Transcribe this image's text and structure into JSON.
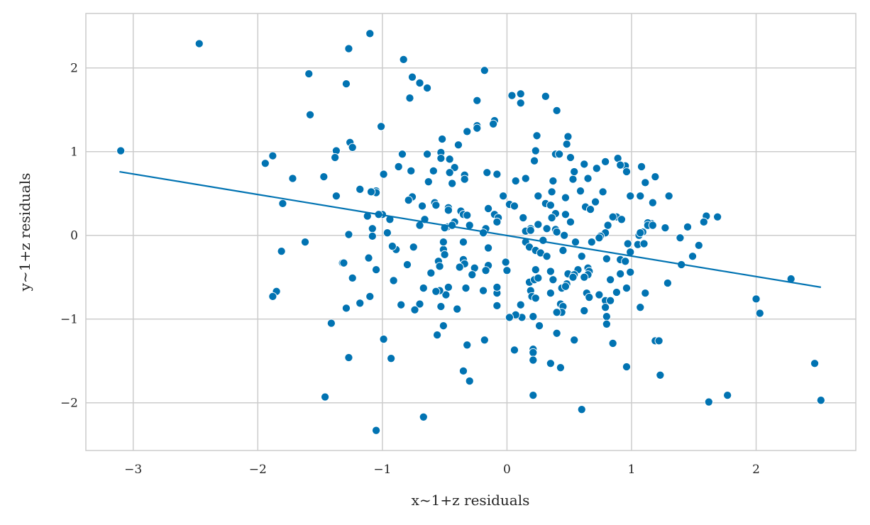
{
  "chart_data": {
    "type": "scatter",
    "title": "",
    "xlabel": "x~1+z residuals",
    "ylabel": "y~1+z residuals",
    "xlim": [
      -3.38,
      2.8
    ],
    "ylim": [
      -2.57,
      2.65
    ],
    "grid": true,
    "xticks": [
      -3,
      -2,
      -1,
      0,
      1,
      2
    ],
    "yticks": [
      -2,
      -1,
      0,
      1,
      2
    ],
    "xtick_labels": [
      "−3",
      "−2",
      "−1",
      "0",
      "1",
      "2"
    ],
    "ytick_labels": [
      "−2",
      "−1",
      "0",
      "1",
      "2"
    ],
    "point_color": "#0173b2",
    "line_color": "#0173b2",
    "regression_line": {
      "x": [
        -3.11,
        2.52
      ],
      "y": [
        0.76,
        -0.62
      ]
    },
    "points": [
      [
        -3.1,
        1.01
      ],
      [
        -2.47,
        2.29
      ],
      [
        -1.59,
        1.93
      ],
      [
        -1.58,
        1.44
      ],
      [
        -1.27,
        2.23
      ],
      [
        -1.1,
        2.41
      ],
      [
        -1.29,
        1.81
      ],
      [
        -0.83,
        2.1
      ],
      [
        -0.76,
        1.89
      ],
      [
        -0.7,
        1.82
      ],
      [
        -0.64,
        1.76
      ],
      [
        -0.78,
        1.64
      ],
      [
        -0.18,
        1.97
      ],
      [
        -1.01,
        1.3
      ],
      [
        -0.24,
        1.61
      ],
      [
        0.04,
        1.67
      ],
      [
        0.11,
        1.69
      ],
      [
        0.11,
        1.58
      ],
      [
        0.31,
        1.66
      ],
      [
        0.4,
        1.49
      ],
      [
        -0.1,
        1.37
      ],
      [
        -0.11,
        1.33
      ],
      [
        -0.24,
        1.31
      ],
      [
        -0.24,
        1.28
      ],
      [
        -0.32,
        1.24
      ],
      [
        -0.52,
        1.15
      ],
      [
        -0.39,
        1.08
      ],
      [
        0.24,
        1.19
      ],
      [
        0.49,
        1.18
      ],
      [
        0.48,
        1.09
      ],
      [
        0.51,
        0.93
      ],
      [
        0.23,
        1.01
      ],
      [
        0.22,
        0.89
      ],
      [
        0.39,
        0.97
      ],
      [
        0.42,
        0.97
      ],
      [
        -0.64,
        0.97
      ],
      [
        -0.53,
        0.99
      ],
      [
        -0.53,
        0.92
      ],
      [
        -0.46,
        0.91
      ],
      [
        -0.42,
        0.81
      ],
      [
        -0.46,
        0.75
      ],
      [
        -0.59,
        0.77
      ],
      [
        -0.34,
        0.72
      ],
      [
        -0.34,
        0.67
      ],
      [
        -0.63,
        0.64
      ],
      [
        -0.44,
        0.62
      ],
      [
        -0.84,
        0.97
      ],
      [
        -0.87,
        0.82
      ],
      [
        -0.99,
        0.73
      ],
      [
        -0.77,
        0.77
      ],
      [
        -0.76,
        0.46
      ],
      [
        -0.79,
        0.42
      ],
      [
        -0.68,
        0.35
      ],
      [
        -0.66,
        0.19
      ],
      [
        -0.7,
        0.12
      ],
      [
        -0.58,
        0.39
      ],
      [
        -0.57,
        0.36
      ],
      [
        -0.48,
        0.1
      ],
      [
        -0.47,
        0.33
      ],
      [
        -0.47,
        0.3
      ],
      [
        -0.37,
        0.29
      ],
      [
        -0.35,
        0.25
      ],
      [
        -0.32,
        0.24
      ],
      [
        -0.42,
        0.16
      ],
      [
        -0.44,
        0.12
      ],
      [
        -0.3,
        0.12
      ],
      [
        -0.16,
        0.75
      ],
      [
        -0.08,
        0.73
      ],
      [
        -0.1,
        0.25
      ],
      [
        -0.07,
        0.21
      ],
      [
        -0.08,
        0.16
      ],
      [
        -0.17,
        0.08
      ],
      [
        -0.19,
        0.03
      ],
      [
        -0.03,
        0.47
      ],
      [
        -0.15,
        0.32
      ],
      [
        0.07,
        0.65
      ],
      [
        0.15,
        0.68
      ],
      [
        0.19,
        0.08
      ],
      [
        0.15,
        0.05
      ],
      [
        0.15,
        -0.08
      ],
      [
        0.02,
        0.37
      ],
      [
        0.06,
        0.35
      ],
      [
        0.13,
        0.21
      ],
      [
        0.25,
        0.47
      ],
      [
        0.36,
        0.52
      ],
      [
        0.37,
        0.65
      ],
      [
        0.31,
        0.38
      ],
      [
        0.35,
        0.36
      ],
      [
        0.39,
        0.26
      ],
      [
        0.36,
        0.21
      ],
      [
        0.32,
        0.08
      ],
      [
        0.39,
        0.07
      ],
      [
        0.25,
        0.13
      ],
      [
        0.19,
        0.06
      ],
      [
        0.29,
        -0.06
      ],
      [
        0.18,
        -0.14
      ],
      [
        0.23,
        -0.18
      ],
      [
        0.27,
        -0.21
      ],
      [
        0.32,
        -0.25
      ],
      [
        0.45,
        -0.18
      ],
      [
        0.47,
        0.45
      ],
      [
        0.47,
        0.25
      ],
      [
        0.51,
        0.16
      ],
      [
        0.53,
        0.67
      ],
      [
        0.54,
        0.76
      ],
      [
        0.59,
        0.53
      ],
      [
        0.62,
        0.85
      ],
      [
        0.65,
        0.68
      ],
      [
        0.63,
        0.34
      ],
      [
        0.72,
        0.8
      ],
      [
        0.71,
        0.4
      ],
      [
        0.79,
        0.88
      ],
      [
        0.77,
        0.52
      ],
      [
        0.89,
        0.92
      ],
      [
        0.95,
        0.83
      ],
      [
        0.96,
        0.76
      ],
      [
        0.91,
        0.84
      ],
      [
        1.08,
        0.82
      ],
      [
        0.99,
        0.47
      ],
      [
        1.07,
        0.47
      ],
      [
        1.19,
        0.7
      ],
      [
        1.11,
        0.63
      ],
      [
        1.17,
        0.39
      ],
      [
        1.3,
        0.47
      ],
      [
        1.16,
        0.14
      ],
      [
        1.13,
        0.15
      ],
      [
        1.13,
        0.12
      ],
      [
        1.17,
        0.12
      ],
      [
        1.09,
        0.04
      ],
      [
        1.06,
        0.0
      ],
      [
        1.07,
        0.03
      ],
      [
        1.27,
        0.09
      ],
      [
        1.05,
        -0.11
      ],
      [
        1.1,
        -0.1
      ],
      [
        0.97,
        -0.1
      ],
      [
        1.39,
        -0.03
      ],
      [
        1.45,
        0.1
      ],
      [
        1.54,
        -0.12
      ],
      [
        1.49,
        -0.25
      ],
      [
        1.4,
        -0.35
      ],
      [
        1.6,
        0.23
      ],
      [
        1.58,
        0.16
      ],
      [
        1.69,
        0.22
      ],
      [
        0.67,
        0.31
      ],
      [
        0.88,
        0.22
      ],
      [
        0.85,
        0.22
      ],
      [
        0.81,
        0.12
      ],
      [
        0.92,
        0.19
      ],
      [
        0.78,
        0.02
      ],
      [
        0.79,
        0.03
      ],
      [
        0.75,
        -0.01
      ],
      [
        0.74,
        -0.03
      ],
      [
        0.68,
        -0.08
      ],
      [
        0.55,
        -0.08
      ],
      [
        0.46,
        0.0
      ],
      [
        0.4,
        0.04
      ],
      [
        0.6,
        -0.25
      ],
      [
        0.57,
        -0.41
      ],
      [
        0.65,
        -0.39
      ],
      [
        0.66,
        -0.43
      ],
      [
        0.65,
        -0.47
      ],
      [
        0.62,
        -0.5
      ],
      [
        0.49,
        -0.46
      ],
      [
        0.54,
        -0.47
      ],
      [
        0.53,
        -0.5
      ],
      [
        0.48,
        -0.58
      ],
      [
        0.44,
        -0.63
      ],
      [
        0.35,
        -0.43
      ],
      [
        0.37,
        -0.53
      ],
      [
        0.47,
        -0.61
      ],
      [
        0.43,
        -0.82
      ],
      [
        0.45,
        -0.85
      ],
      [
        0.44,
        -0.92
      ],
      [
        0.4,
        -0.92
      ],
      [
        0.35,
        -0.69
      ],
      [
        0.64,
        -0.69
      ],
      [
        0.66,
        -0.74
      ],
      [
        0.74,
        -0.71
      ],
      [
        0.8,
        -0.28
      ],
      [
        0.91,
        -0.29
      ],
      [
        0.95,
        -0.31
      ],
      [
        0.99,
        -0.2
      ],
      [
        0.99,
        -0.44
      ],
      [
        0.91,
        -0.46
      ],
      [
        0.83,
        -0.53
      ],
      [
        0.79,
        -0.78
      ],
      [
        0.83,
        -0.78
      ],
      [
        0.79,
        -0.86
      ],
      [
        0.8,
        -0.97
      ],
      [
        0.8,
        -1.06
      ],
      [
        0.88,
        -0.68
      ],
      [
        0.96,
        -0.63
      ],
      [
        1.11,
        -0.69
      ],
      [
        1.07,
        -0.86
      ],
      [
        1.29,
        -0.57
      ],
      [
        0.85,
        -1.29
      ],
      [
        0.62,
        -0.9
      ],
      [
        0.4,
        -1.17
      ],
      [
        0.54,
        -1.25
      ],
      [
        0.35,
        -1.53
      ],
      [
        0.43,
        -1.58
      ],
      [
        0.6,
        -2.08
      ],
      [
        0.96,
        -1.57
      ],
      [
        1.19,
        -1.26
      ],
      [
        1.22,
        -1.26
      ],
      [
        1.23,
        -1.67
      ],
      [
        0.21,
        -0.97
      ],
      [
        0.26,
        -1.08
      ],
      [
        0.21,
        -1.36
      ],
      [
        0.21,
        -1.4
      ],
      [
        0.21,
        -1.49
      ],
      [
        0.21,
        -1.91
      ],
      [
        0.06,
        -1.37
      ],
      [
        0.12,
        -0.98
      ],
      [
        0.07,
        -0.95
      ],
      [
        0.02,
        -0.98
      ],
      [
        0.11,
        -0.83
      ],
      [
        0.18,
        -0.56
      ],
      [
        0.22,
        -0.53
      ],
      [
        0.25,
        -0.51
      ],
      [
        0.19,
        -0.66
      ],
      [
        0.2,
        -0.73
      ],
      [
        0.23,
        -0.75
      ],
      [
        0.23,
        -0.41
      ],
      [
        -0.08,
        -0.84
      ],
      [
        -0.08,
        -0.69
      ],
      [
        -0.08,
        -0.62
      ],
      [
        -0.01,
        -0.32
      ],
      [
        0.0,
        -0.42
      ],
      [
        -0.15,
        -0.36
      ],
      [
        -0.17,
        -0.42
      ],
      [
        -0.15,
        -0.15
      ],
      [
        -0.26,
        -0.39
      ],
      [
        -0.19,
        -0.66
      ],
      [
        -0.28,
        -0.47
      ],
      [
        -0.35,
        -0.29
      ],
      [
        -0.34,
        -0.34
      ],
      [
        -0.38,
        -0.38
      ],
      [
        -0.35,
        -0.08
      ],
      [
        -0.33,
        -0.63
      ],
      [
        -0.4,
        -0.88
      ],
      [
        -0.35,
        -1.62
      ],
      [
        -0.32,
        -1.31
      ],
      [
        -0.3,
        -1.74
      ],
      [
        -0.18,
        -1.25
      ],
      [
        -0.47,
        -0.62
      ],
      [
        -0.49,
        -0.71
      ],
      [
        -0.54,
        -0.66
      ],
      [
        -0.53,
        -0.85
      ],
      [
        -0.51,
        -1.08
      ],
      [
        -0.57,
        -0.67
      ],
      [
        -0.61,
        -0.45
      ],
      [
        -0.55,
        -0.31
      ],
      [
        -0.54,
        -0.37
      ],
      [
        -0.51,
        -0.17
      ],
      [
        -0.51,
        -0.08
      ],
      [
        -0.56,
        -1.19
      ],
      [
        -0.67,
        -0.63
      ],
      [
        -0.7,
        -0.82
      ],
      [
        -0.74,
        -0.89
      ],
      [
        -0.75,
        -0.14
      ],
      [
        -0.8,
        -0.35
      ],
      [
        -0.85,
        -0.83
      ],
      [
        -0.67,
        -2.17
      ],
      [
        -0.89,
        -0.17
      ],
      [
        -0.92,
        -0.13
      ],
      [
        -0.96,
        0.03
      ],
      [
        -0.94,
        0.19
      ],
      [
        -1.0,
        0.25
      ],
      [
        -1.03,
        0.25
      ],
      [
        -1.05,
        0.53
      ],
      [
        -1.05,
        0.51
      ],
      [
        -1.09,
        0.52
      ],
      [
        -1.08,
        0.08
      ],
      [
        -1.08,
        -0.01
      ],
      [
        -1.12,
        0.23
      ],
      [
        -1.11,
        -0.27
      ],
      [
        -1.05,
        -0.41
      ],
      [
        -1.1,
        -0.73
      ],
      [
        -0.91,
        -0.54
      ],
      [
        -0.99,
        -1.24
      ],
      [
        -0.93,
        -1.47
      ],
      [
        -1.05,
        -2.33
      ],
      [
        -1.18,
        -0.81
      ],
      [
        -1.24,
        -0.51
      ],
      [
        -1.29,
        -0.87
      ],
      [
        -1.27,
        -1.46
      ],
      [
        -1.27,
        0.01
      ],
      [
        -1.18,
        0.55
      ],
      [
        -1.26,
        1.11
      ],
      [
        -1.24,
        1.05
      ],
      [
        -1.37,
        1.01
      ],
      [
        -1.38,
        0.93
      ],
      [
        -1.37,
        0.47
      ],
      [
        -1.47,
        0.7
      ],
      [
        -1.32,
        -0.33
      ],
      [
        -1.31,
        -0.33
      ],
      [
        -1.62,
        -0.08
      ],
      [
        -1.41,
        -1.05
      ],
      [
        -1.46,
        -1.93
      ],
      [
        -1.88,
        0.95
      ],
      [
        -1.94,
        0.86
      ],
      [
        -1.72,
        0.68
      ],
      [
        -1.8,
        0.38
      ],
      [
        -1.81,
        -0.19
      ],
      [
        -1.85,
        -0.67
      ],
      [
        -1.88,
        -0.73
      ],
      [
        2.28,
        -0.52
      ],
      [
        2.0,
        -0.76
      ],
      [
        2.03,
        -0.93
      ],
      [
        2.47,
        -1.53
      ],
      [
        2.52,
        -1.97
      ],
      [
        1.77,
        -1.91
      ],
      [
        1.62,
        -1.99
      ],
      [
        -0.5,
        -0.23
      ],
      [
        -0.5,
        0.09
      ]
    ]
  }
}
